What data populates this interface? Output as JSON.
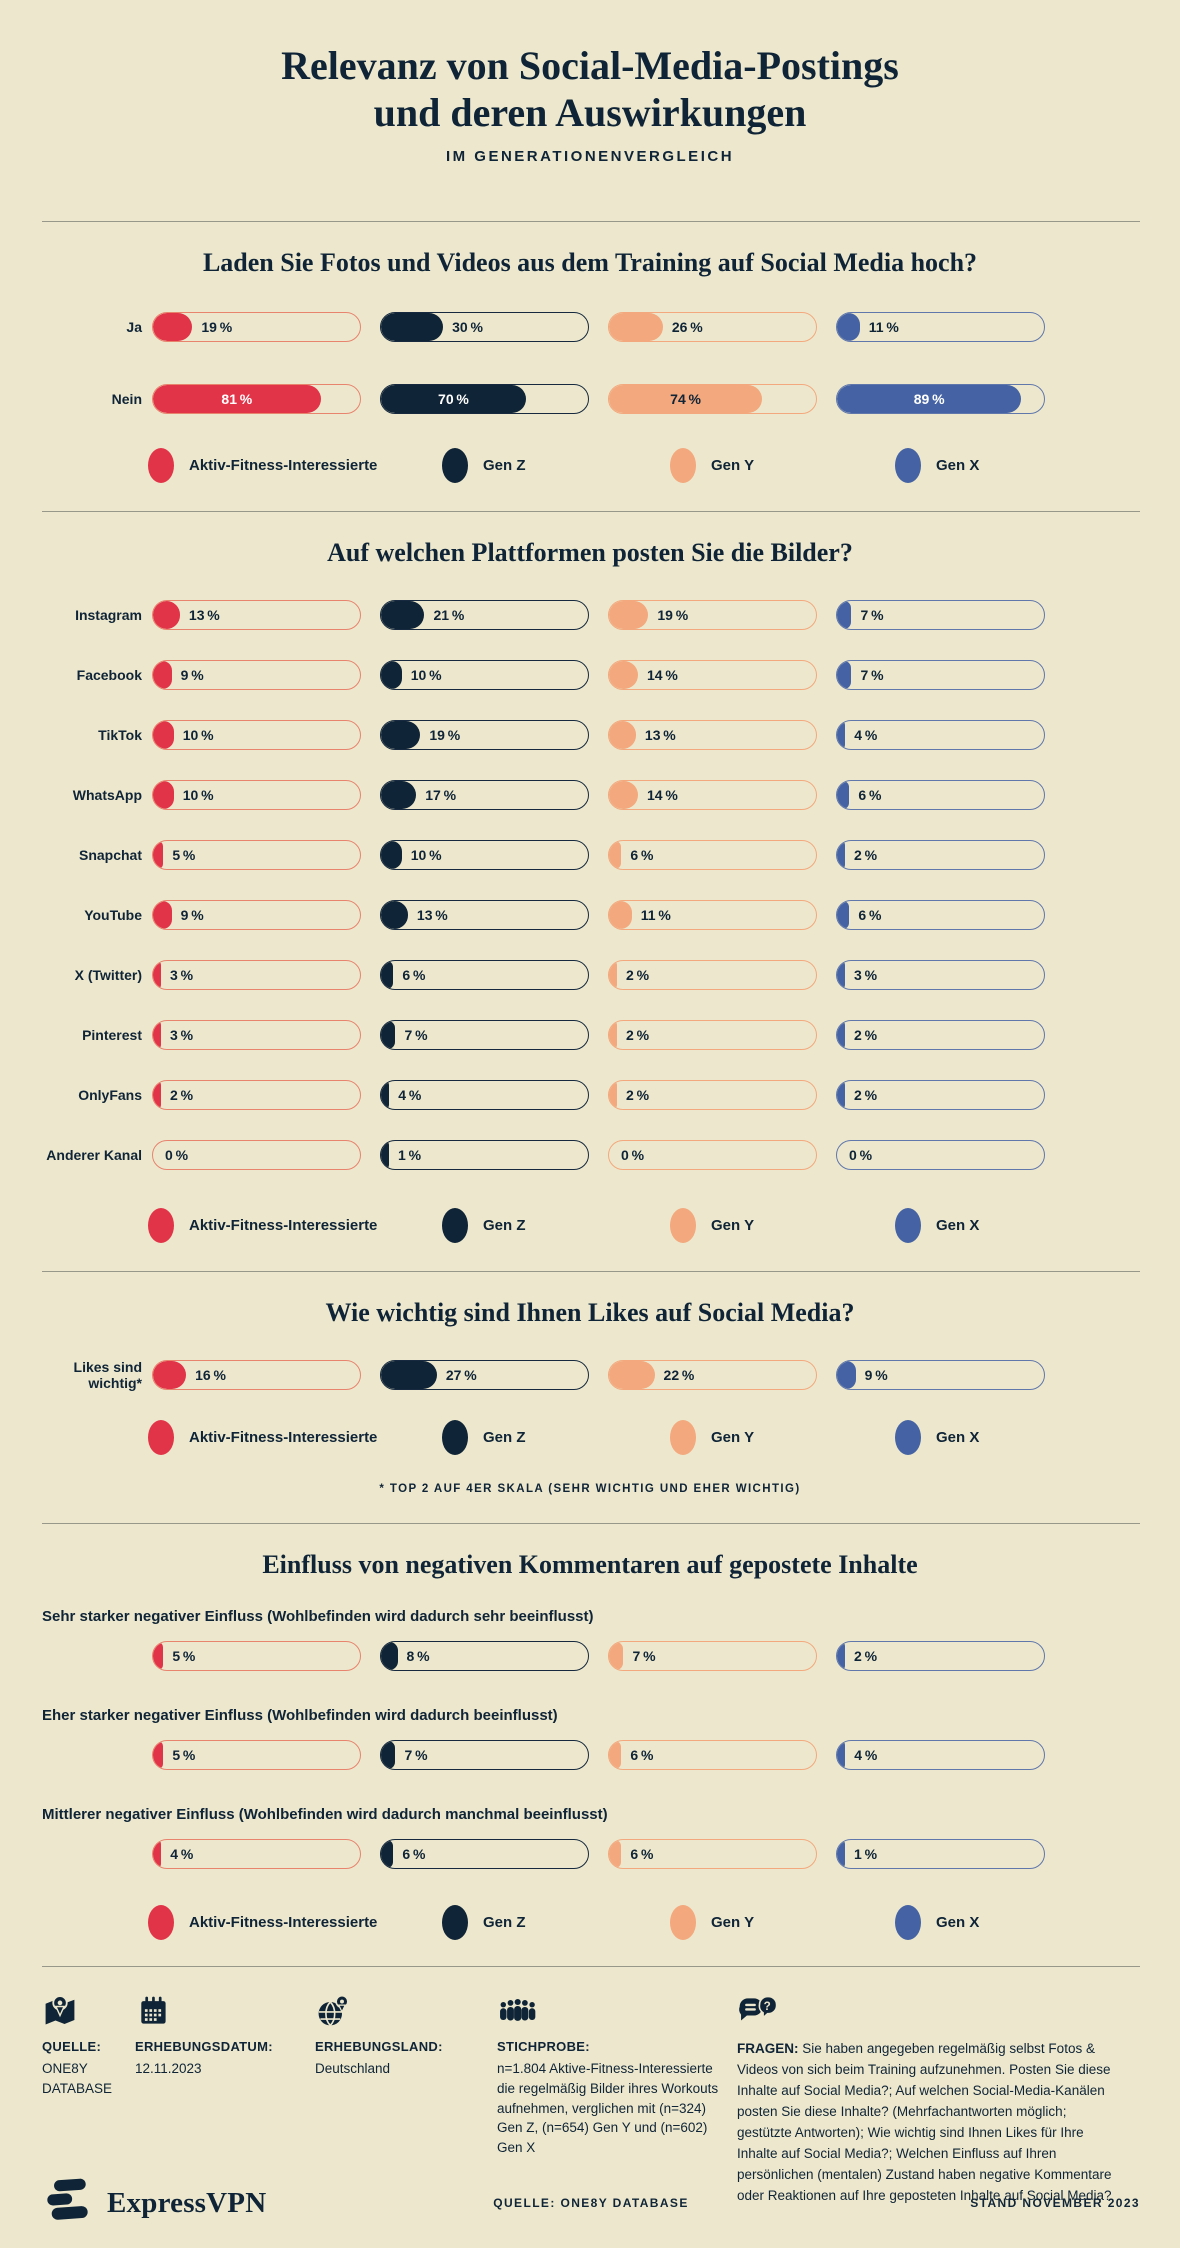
{
  "header": {
    "title_line1": "Relevanz von Social-Media-Postings",
    "title_line2": "und deren Auswirkungen",
    "subtitle": "IM GENERATIONENVERGLEICH"
  },
  "colors": {
    "background": "#EDE8CD",
    "navy": "#0F2437",
    "red": "#E23449",
    "red_outline": "#E8836E",
    "peach": "#F3A87D",
    "blue": "#4563A4",
    "blue_outline": "#6077AC",
    "divider": "#97978A"
  },
  "groups": [
    {
      "id": "aktiv-fitness",
      "label": "Aktiv-Fitness-Interessierte",
      "color": "#E23449",
      "outline": "#E8836E",
      "text_on_fill": "#FFFFFF"
    },
    {
      "id": "gen-z",
      "label": "Gen Z",
      "color": "#0F2437",
      "outline": "#16293E",
      "text_on_fill": "#FFFFFF"
    },
    {
      "id": "gen-y",
      "label": "Gen Y",
      "color": "#F3A87D",
      "outline": "#F3A87D",
      "text_on_fill": "#0F2437"
    },
    {
      "id": "gen-x",
      "label": "Gen X",
      "color": "#4563A4",
      "outline": "#6077AC",
      "text_on_fill": "#FFFFFF"
    }
  ],
  "sections": [
    {
      "layout": "side",
      "title": "Laden Sie Fotos und Videos aus dem Training auf Social Media hoch?",
      "rows": [
        {
          "label": "Ja",
          "values": [
            19,
            30,
            26,
            11
          ]
        },
        {
          "label": "Nein",
          "values": [
            81,
            70,
            74,
            89
          ]
        }
      ],
      "footnote": ""
    },
    {
      "layout": "side",
      "title": "Auf welchen Plattformen posten Sie die Bilder?",
      "rows": [
        {
          "label": "Instagram",
          "values": [
            13,
            21,
            19,
            7
          ]
        },
        {
          "label": "Facebook",
          "values": [
            9,
            10,
            14,
            7
          ]
        },
        {
          "label": "TikTok",
          "values": [
            10,
            19,
            13,
            4
          ]
        },
        {
          "label": "WhatsApp",
          "values": [
            10,
            17,
            14,
            6
          ]
        },
        {
          "label": "Snapchat",
          "values": [
            5,
            10,
            6,
            2
          ]
        },
        {
          "label": "YouTube",
          "values": [
            9,
            13,
            11,
            6
          ]
        },
        {
          "label": "X (Twitter)",
          "values": [
            3,
            6,
            2,
            3
          ]
        },
        {
          "label": "Pinterest",
          "values": [
            3,
            7,
            2,
            2
          ]
        },
        {
          "label": "OnlyFans",
          "values": [
            2,
            4,
            2,
            2
          ]
        },
        {
          "label": "Anderer Kanal",
          "values": [
            0,
            1,
            0,
            0
          ]
        }
      ],
      "footnote": ""
    },
    {
      "layout": "side",
      "title": "Wie wichtig sind Ihnen Likes auf Social Media?",
      "rows": [
        {
          "label": "Likes sind wichtig*",
          "values": [
            16,
            27,
            22,
            9
          ]
        }
      ],
      "footnote": "* TOP 2 AUF 4ER SKALA (SEHR WICHTIG UND EHER WICHTIG)"
    },
    {
      "layout": "top",
      "title": "Einfluss von negativen Kommentaren auf gepostete Inhalte",
      "rows": [
        {
          "label": "Sehr starker negativer Einfluss (Wohlbefinden wird dadurch sehr beeinflusst)",
          "values": [
            5,
            8,
            7,
            2
          ]
        },
        {
          "label": "Eher starker negativer Einfluss (Wohlbefinden wird dadurch beeinflusst)",
          "values": [
            5,
            7,
            6,
            4
          ]
        },
        {
          "label": "Mittlerer negativer Einfluss (Wohlbefinden wird dadurch manchmal beeinflusst)",
          "values": [
            4,
            6,
            6,
            1
          ]
        }
      ],
      "footnote": ""
    }
  ],
  "chart_data": [
    {
      "type": "bar",
      "title": "Laden Sie Fotos und Videos aus dem Training auf Social Media hoch?",
      "categories": [
        "Ja",
        "Nein"
      ],
      "series": [
        {
          "name": "Aktiv-Fitness-Interessierte",
          "values": [
            19,
            81
          ]
        },
        {
          "name": "Gen Z",
          "values": [
            30,
            70
          ]
        },
        {
          "name": "Gen Y",
          "values": [
            26,
            74
          ]
        },
        {
          "name": "Gen X",
          "values": [
            11,
            89
          ]
        }
      ],
      "unit": "%",
      "xlim": [
        0,
        100
      ],
      "grid": false,
      "legend_position": "bottom"
    },
    {
      "type": "bar",
      "title": "Auf welchen Plattformen posten Sie die Bilder?",
      "categories": [
        "Instagram",
        "Facebook",
        "TikTok",
        "WhatsApp",
        "Snapchat",
        "YouTube",
        "X (Twitter)",
        "Pinterest",
        "OnlyFans",
        "Anderer Kanal"
      ],
      "series": [
        {
          "name": "Aktiv-Fitness-Interessierte",
          "values": [
            13,
            9,
            10,
            10,
            5,
            9,
            3,
            3,
            2,
            0
          ]
        },
        {
          "name": "Gen Z",
          "values": [
            21,
            10,
            19,
            17,
            10,
            13,
            6,
            7,
            4,
            1
          ]
        },
        {
          "name": "Gen Y",
          "values": [
            19,
            14,
            13,
            14,
            6,
            11,
            2,
            2,
            2,
            0
          ]
        },
        {
          "name": "Gen X",
          "values": [
            7,
            7,
            4,
            6,
            2,
            6,
            3,
            2,
            2,
            0
          ]
        }
      ],
      "unit": "%",
      "xlim": [
        0,
        100
      ],
      "grid": false,
      "legend_position": "bottom"
    },
    {
      "type": "bar",
      "title": "Wie wichtig sind Ihnen Likes auf Social Media?",
      "categories": [
        "Likes sind wichtig*"
      ],
      "series": [
        {
          "name": "Aktiv-Fitness-Interessierte",
          "values": [
            16
          ]
        },
        {
          "name": "Gen Z",
          "values": [
            27
          ]
        },
        {
          "name": "Gen Y",
          "values": [
            22
          ]
        },
        {
          "name": "Gen X",
          "values": [
            9
          ]
        }
      ],
      "unit": "%",
      "xlim": [
        0,
        100
      ],
      "grid": false,
      "legend_position": "bottom",
      "annotation": "* TOP 2 AUF 4ER SKALA (SEHR WICHTIG UND EHER WICHTIG)"
    },
    {
      "type": "bar",
      "title": "Einfluss von negativen Kommentaren auf gepostete Inhalte",
      "categories": [
        "Sehr starker negativer Einfluss (Wohlbefinden wird dadurch sehr beeinflusst)",
        "Eher starker negativer Einfluss (Wohlbefinden wird dadurch beeinflusst)",
        "Mittlerer negativer Einfluss (Wohlbefinden wird dadurch manchmal beeinflusst)"
      ],
      "series": [
        {
          "name": "Aktiv-Fitness-Interessierte",
          "values": [
            5,
            5,
            4
          ]
        },
        {
          "name": "Gen Z",
          "values": [
            8,
            7,
            6
          ]
        },
        {
          "name": "Gen Y",
          "values": [
            7,
            6,
            6
          ]
        },
        {
          "name": "Gen X",
          "values": [
            2,
            4,
            1
          ]
        }
      ],
      "unit": "%",
      "xlim": [
        0,
        100
      ],
      "grid": false,
      "legend_position": "bottom"
    }
  ],
  "footer": {
    "items": [
      {
        "icon": "map-pin-icon",
        "label": "QUELLE:",
        "value": "ONE8Y DATABASE"
      },
      {
        "icon": "calendar-icon",
        "label": "ERHEBUNGSDATUM:",
        "value": "12.11.2023"
      },
      {
        "icon": "globe-pin-icon",
        "label": "ERHEBUNGSLAND:",
        "value": "Deutschland"
      },
      {
        "icon": "people-icon",
        "label": "STICHPROBE:",
        "value": "n=1.804 Aktive-Fitness-Interessierte die regelmäßig Bilder ihres Workouts aufnehmen, verglichen mit (n=324) Gen Z, (n=654) Gen Y und (n=602) Gen X"
      },
      {
        "icon": "chat-question-icon",
        "label": "FRAGEN:",
        "value": "Sie haben angegeben regelmäßig selbst Fotos & Videos von sich beim Training aufzunehmen. Posten Sie diese Inhalte auf Social Media?; Auf welchen Social-Media-Kanälen posten Sie diese Inhalte? (Mehrfachantworten möglich; gestützte Antworten); Wie wichtig sind Ihnen Likes für Ihre Inhalte auf Social Media?; Welchen Einfluss auf Ihren persönlichen (mentalen) Zustand haben negative Kommentare oder Reaktionen auf Ihre geposteten Inhalte auf Social Media?"
      }
    ]
  },
  "bottom_bar": {
    "brand": "ExpressVPN",
    "source": "QUELLE: ONE8Y DATABASE",
    "stand": "STAND NOVEMBER 2023"
  }
}
